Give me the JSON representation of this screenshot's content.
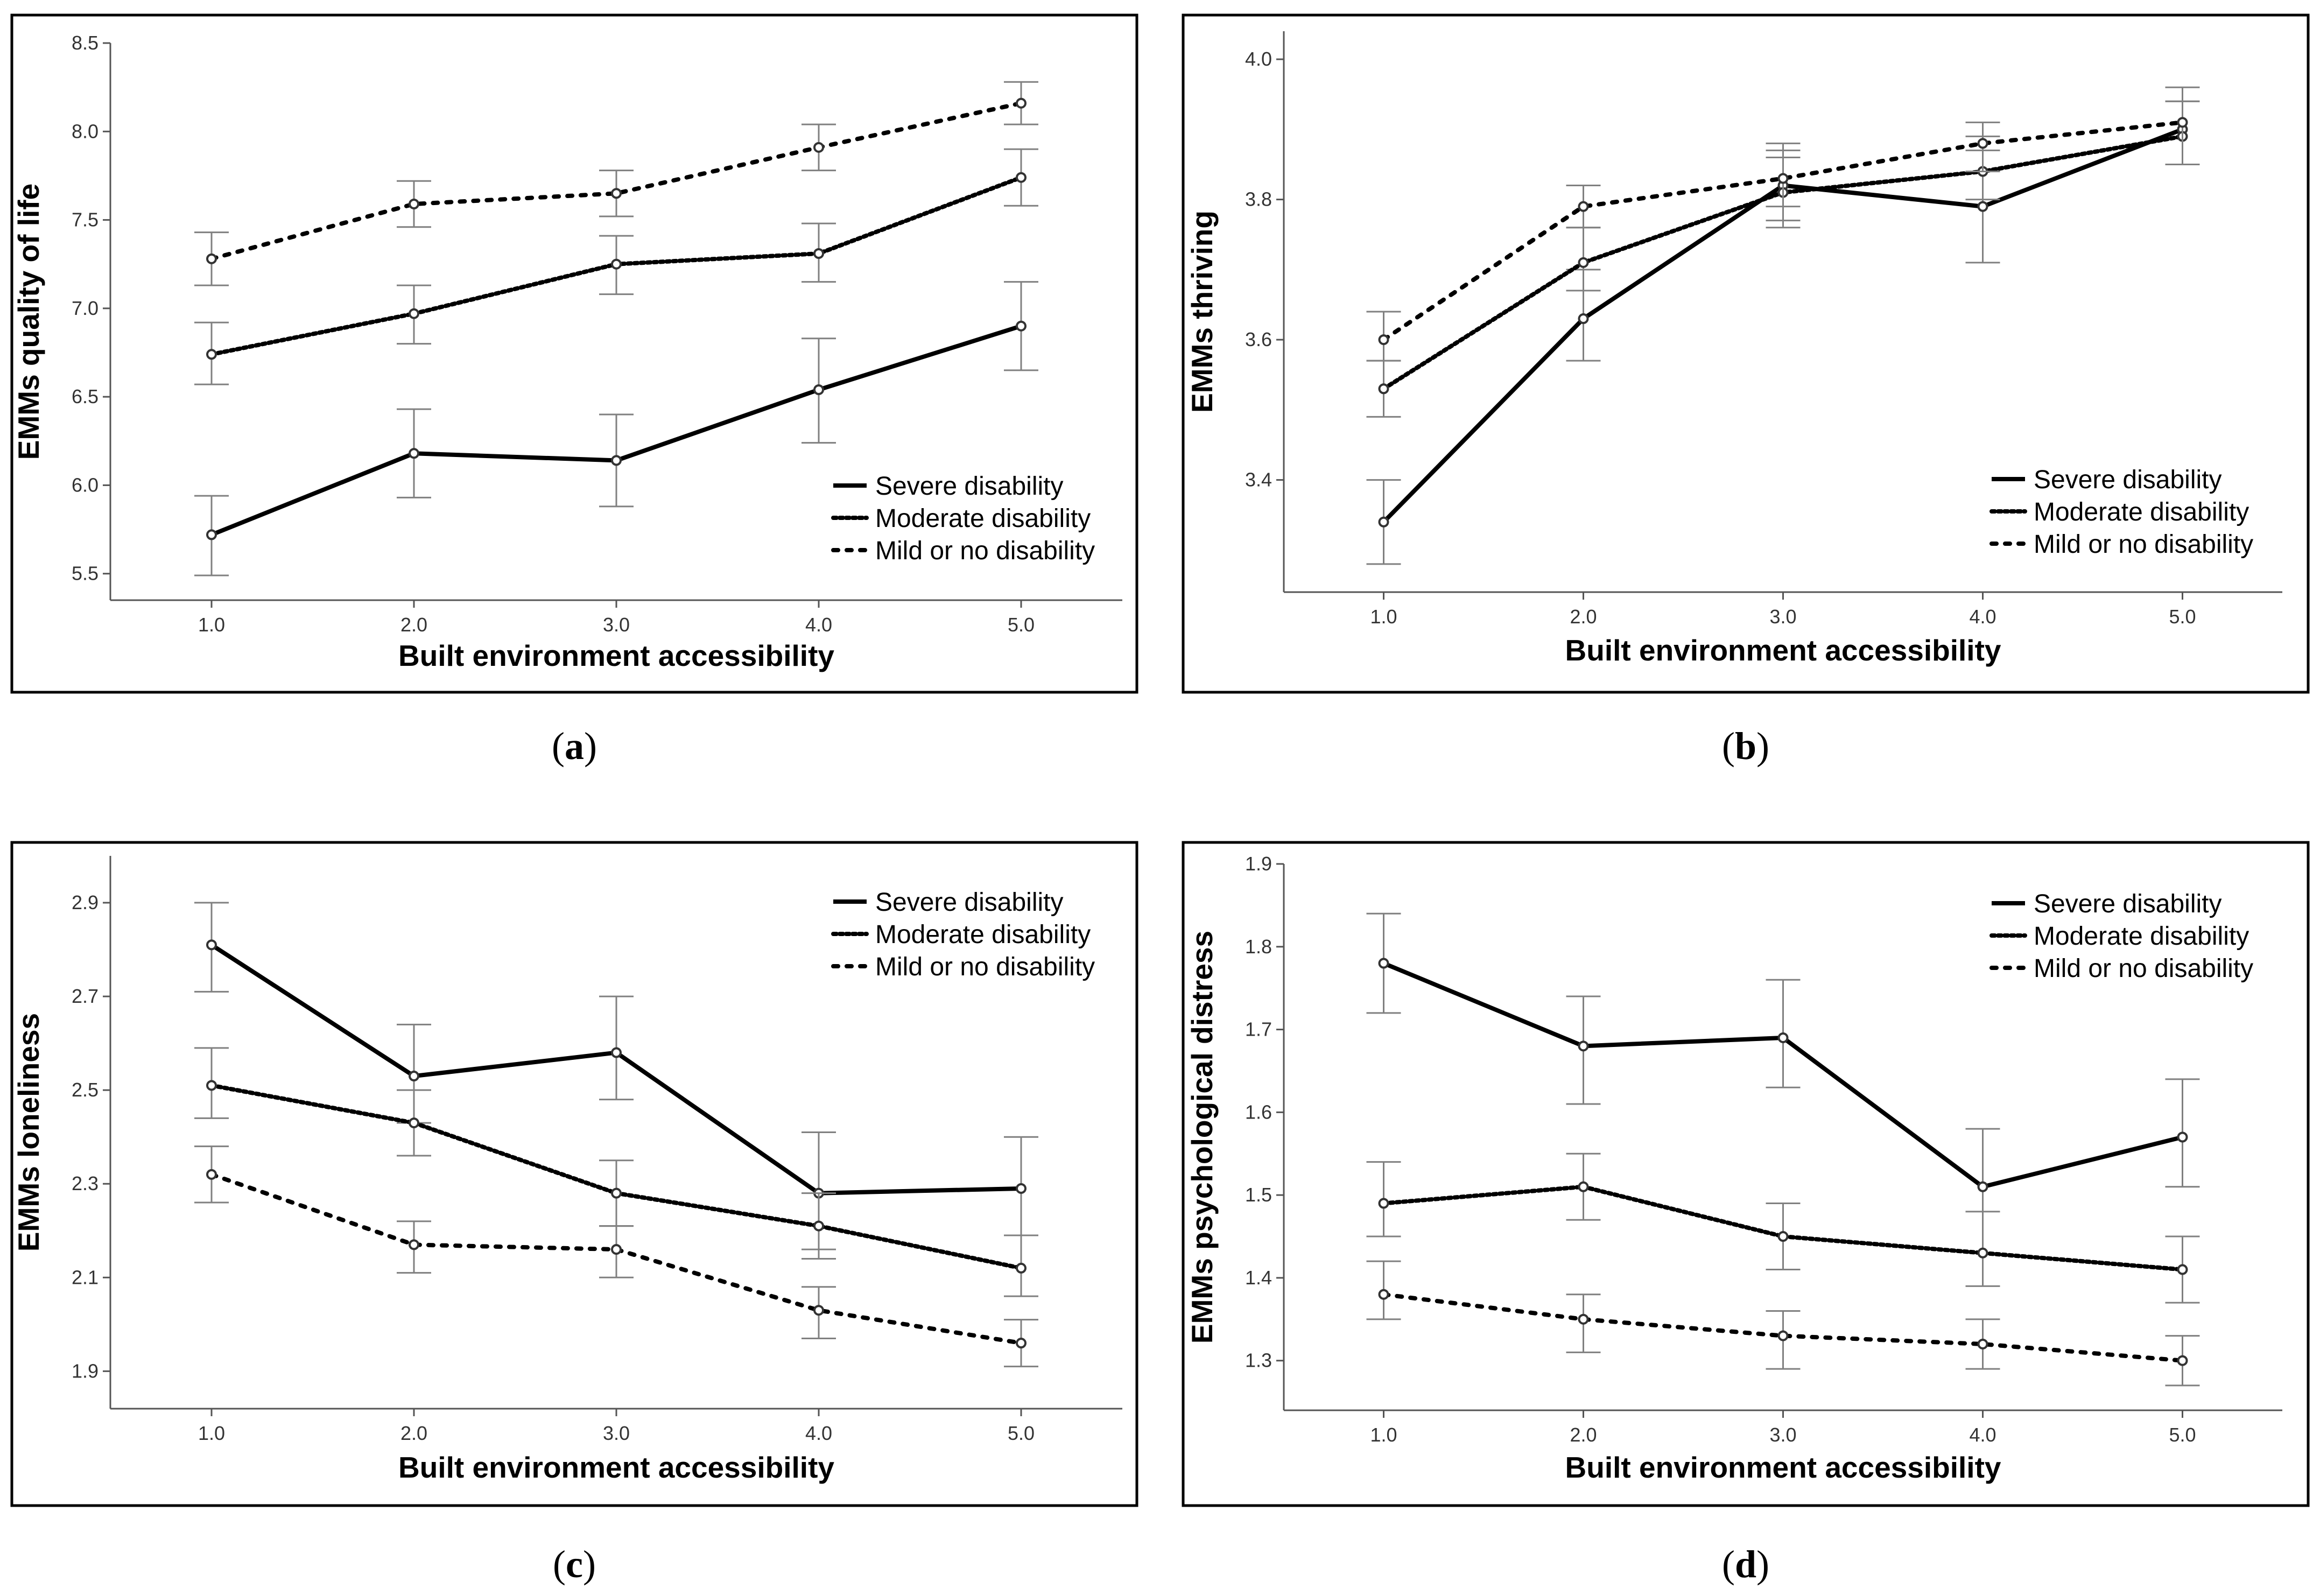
{
  "figure": {
    "colors": {
      "line": "#000000",
      "error_bar": "#808080",
      "frame": "#000000"
    }
  },
  "chart_data": [
    {
      "type": "line",
      "panel_label": "a",
      "caption": "(a)",
      "xlabel": "Built environment accessibility",
      "ylabel": "EMMs quality of life",
      "categories": [
        "1.0",
        "2.0",
        "3.0",
        "4.0",
        "5.0"
      ],
      "x": [
        1,
        2,
        3,
        4,
        5
      ],
      "xlim": [
        0.5,
        5.5
      ],
      "ylim": [
        5.35,
        8.5
      ],
      "yticks": [
        5.5,
        6.0,
        6.5,
        7.0,
        7.5,
        8.0,
        8.5
      ],
      "ytick_labels": [
        "5.5",
        "6.0",
        "6.5",
        "7.0",
        "7.5",
        "8.0",
        "8.5"
      ],
      "legend_position": "bottom-right",
      "series": [
        {
          "name": "Severe disability",
          "style": "solid",
          "values": [
            5.72,
            6.18,
            6.14,
            6.54,
            6.9
          ],
          "ci_lower": [
            5.49,
            5.93,
            5.88,
            6.24,
            6.65
          ],
          "ci_upper": [
            5.94,
            6.43,
            6.4,
            6.83,
            7.15
          ]
        },
        {
          "name": "Moderate disability",
          "style": "dense-dotted",
          "values": [
            6.74,
            6.97,
            7.25,
            7.31,
            7.74
          ],
          "ci_lower": [
            6.57,
            6.8,
            7.08,
            7.15,
            7.58
          ],
          "ci_upper": [
            6.92,
            7.13,
            7.41,
            7.48,
            7.9
          ]
        },
        {
          "name": "Mild or no disability",
          "style": "dotted",
          "values": [
            7.28,
            7.59,
            7.65,
            7.91,
            8.16
          ],
          "ci_lower": [
            7.13,
            7.46,
            7.52,
            7.78,
            8.04
          ],
          "ci_upper": [
            7.43,
            7.72,
            7.78,
            8.04,
            8.28
          ]
        }
      ]
    },
    {
      "type": "line",
      "panel_label": "b",
      "caption": "(b)",
      "xlabel": "Built environment accessibility",
      "ylabel": "EMMs thriving",
      "categories": [
        "1.0",
        "2.0",
        "3.0",
        "4.0",
        "5.0"
      ],
      "x": [
        1,
        2,
        3,
        4,
        5
      ],
      "xlim": [
        0.5,
        5.5
      ],
      "ylim": [
        3.24,
        4.04
      ],
      "yticks": [
        3.4,
        3.6,
        3.8,
        4.0
      ],
      "ytick_labels": [
        "3.4",
        "3.6",
        "3.8",
        "4.0"
      ],
      "legend_position": "bottom-right",
      "series": [
        {
          "name": "Severe disability",
          "style": "solid",
          "values": [
            3.34,
            3.63,
            3.82,
            3.79,
            3.9
          ],
          "ci_lower": [
            3.28,
            3.57,
            3.76,
            3.71,
            3.85
          ],
          "ci_upper": [
            3.4,
            3.7,
            3.87,
            3.87,
            3.94
          ]
        },
        {
          "name": "Moderate disability",
          "style": "dense-dotted",
          "values": [
            3.53,
            3.71,
            3.81,
            3.84,
            3.89
          ],
          "ci_lower": [
            3.49,
            3.67,
            3.77,
            3.8,
            3.85
          ],
          "ci_upper": [
            3.57,
            3.76,
            3.86,
            3.89,
            3.94
          ]
        },
        {
          "name": "Mild or no disability",
          "style": "dotted",
          "values": [
            3.6,
            3.79,
            3.83,
            3.88,
            3.91
          ],
          "ci_lower": [
            3.57,
            3.76,
            3.79,
            3.84,
            3.85
          ],
          "ci_upper": [
            3.64,
            3.82,
            3.88,
            3.91,
            3.96
          ]
        }
      ]
    },
    {
      "type": "line",
      "panel_label": "c",
      "caption": "(c)",
      "xlabel": "Built environment accessibility",
      "ylabel": "EMMs loneliness",
      "categories": [
        "1.0",
        "2.0",
        "3.0",
        "4.0",
        "5.0"
      ],
      "x": [
        1,
        2,
        3,
        4,
        5
      ],
      "xlim": [
        0.5,
        5.5
      ],
      "ylim": [
        1.82,
        3.0
      ],
      "yticks": [
        1.9,
        2.1,
        2.3,
        2.5,
        2.7,
        2.9
      ],
      "ytick_labels": [
        "1.9",
        "2.1",
        "2.3",
        "2.5",
        "2.7",
        "2.9"
      ],
      "legend_position": "top-right",
      "series": [
        {
          "name": "Severe disability",
          "style": "solid",
          "values": [
            2.81,
            2.53,
            2.58,
            2.28,
            2.29
          ],
          "ci_lower": [
            2.71,
            2.43,
            2.48,
            2.16,
            2.19
          ],
          "ci_upper": [
            2.9,
            2.64,
            2.7,
            2.41,
            2.4
          ]
        },
        {
          "name": "Moderate disability",
          "style": "dense-dotted",
          "values": [
            2.51,
            2.43,
            2.28,
            2.21,
            2.12
          ],
          "ci_lower": [
            2.44,
            2.36,
            2.21,
            2.14,
            2.06
          ],
          "ci_upper": [
            2.59,
            2.5,
            2.35,
            2.28,
            2.19
          ]
        },
        {
          "name": "Mild or no disability",
          "style": "dotted",
          "values": [
            2.32,
            2.17,
            2.16,
            2.03,
            1.96
          ],
          "ci_lower": [
            2.26,
            2.11,
            2.1,
            1.97,
            1.91
          ],
          "ci_upper": [
            2.38,
            2.22,
            2.21,
            2.08,
            2.01
          ]
        }
      ]
    },
    {
      "type": "line",
      "panel_label": "d",
      "caption": "(d)",
      "xlabel": "Built environment accessibility",
      "ylabel": "EMMs psychological distress",
      "categories": [
        "1.0",
        "2.0",
        "3.0",
        "4.0",
        "5.0"
      ],
      "x": [
        1,
        2,
        3,
        4,
        5
      ],
      "xlim": [
        0.5,
        5.5
      ],
      "ylim": [
        1.24,
        1.9
      ],
      "yticks": [
        1.3,
        1.4,
        1.5,
        1.6,
        1.7,
        1.8,
        1.9
      ],
      "ytick_labels": [
        "1.3",
        "1.4",
        "1.5",
        "1.6",
        "1.7",
        "1.8",
        "1.9"
      ],
      "legend_position": "top-right",
      "series": [
        {
          "name": "Severe disability",
          "style": "solid",
          "values": [
            1.78,
            1.68,
            1.69,
            1.51,
            1.57
          ],
          "ci_lower": [
            1.72,
            1.61,
            1.63,
            1.43,
            1.51
          ],
          "ci_upper": [
            1.84,
            1.74,
            1.76,
            1.58,
            1.64
          ]
        },
        {
          "name": "Moderate disability",
          "style": "dense-dotted",
          "values": [
            1.49,
            1.51,
            1.45,
            1.43,
            1.41
          ],
          "ci_lower": [
            1.45,
            1.47,
            1.41,
            1.39,
            1.37
          ],
          "ci_upper": [
            1.54,
            1.55,
            1.49,
            1.48,
            1.45
          ]
        },
        {
          "name": "Mild or no disability",
          "style": "dotted",
          "values": [
            1.38,
            1.35,
            1.33,
            1.32,
            1.3
          ],
          "ci_lower": [
            1.35,
            1.31,
            1.29,
            1.29,
            1.27
          ],
          "ci_upper": [
            1.42,
            1.38,
            1.36,
            1.35,
            1.33
          ]
        }
      ]
    }
  ]
}
